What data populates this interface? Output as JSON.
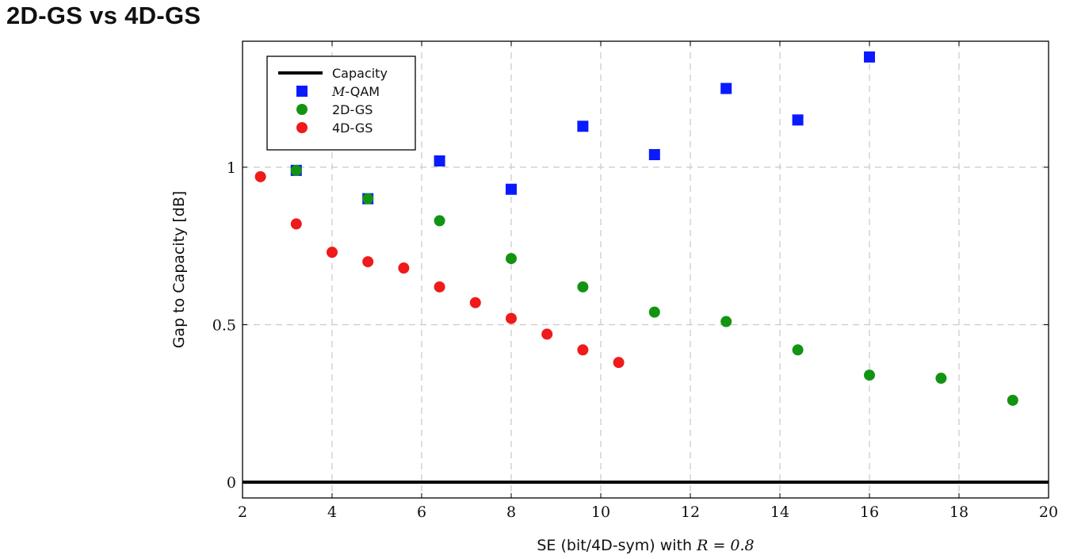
{
  "slide": {
    "title": "2D-GS vs 4D-GS"
  },
  "chart_data": {
    "type": "scatter",
    "xlabel_prefix": "SE (bit/4D-sym) with ",
    "xlabel_math": "R = 0.8",
    "ylabel": "Gap to Capacity [dB]",
    "xlim": [
      2,
      20
    ],
    "ylim": [
      -0.05,
      1.4
    ],
    "xticks": [
      2,
      4,
      6,
      8,
      10,
      12,
      14,
      16,
      18,
      20
    ],
    "yticks": [
      0,
      0.5,
      1
    ],
    "ytick_labels": [
      "0",
      "0.5",
      "1"
    ],
    "grid": true,
    "legend_position": "top-left",
    "series": [
      {
        "name": "Capacity",
        "style": "line",
        "color": "#000000",
        "x": [
          2,
          20
        ],
        "y": [
          0,
          0
        ]
      },
      {
        "name": "M-QAM",
        "name_italic": "M",
        "name_rest": "-QAM",
        "style": "square",
        "color": "#0a1aff",
        "x": [
          3.2,
          4.8,
          6.4,
          8.0,
          9.6,
          11.2,
          12.8,
          14.4,
          16.0
        ],
        "y": [
          0.99,
          0.9,
          1.02,
          0.93,
          1.13,
          1.04,
          1.25,
          1.15,
          1.35
        ]
      },
      {
        "name": "2D-GS",
        "style": "circle",
        "color": "#129412",
        "x": [
          3.2,
          4.8,
          6.4,
          8.0,
          9.6,
          11.2,
          12.8,
          14.4,
          16.0,
          17.6,
          19.2
        ],
        "y": [
          0.99,
          0.9,
          0.83,
          0.71,
          0.62,
          0.54,
          0.51,
          0.42,
          0.34,
          0.33,
          0.26
        ]
      },
      {
        "name": "4D-GS",
        "style": "circle",
        "color": "#ef1a1a",
        "x": [
          2.4,
          3.2,
          4.0,
          4.8,
          5.6,
          6.4,
          7.2,
          8.0,
          8.8,
          9.6,
          10.4
        ],
        "y": [
          0.97,
          0.82,
          0.73,
          0.7,
          0.68,
          0.62,
          0.57,
          0.52,
          0.47,
          0.42,
          0.38
        ]
      }
    ]
  }
}
